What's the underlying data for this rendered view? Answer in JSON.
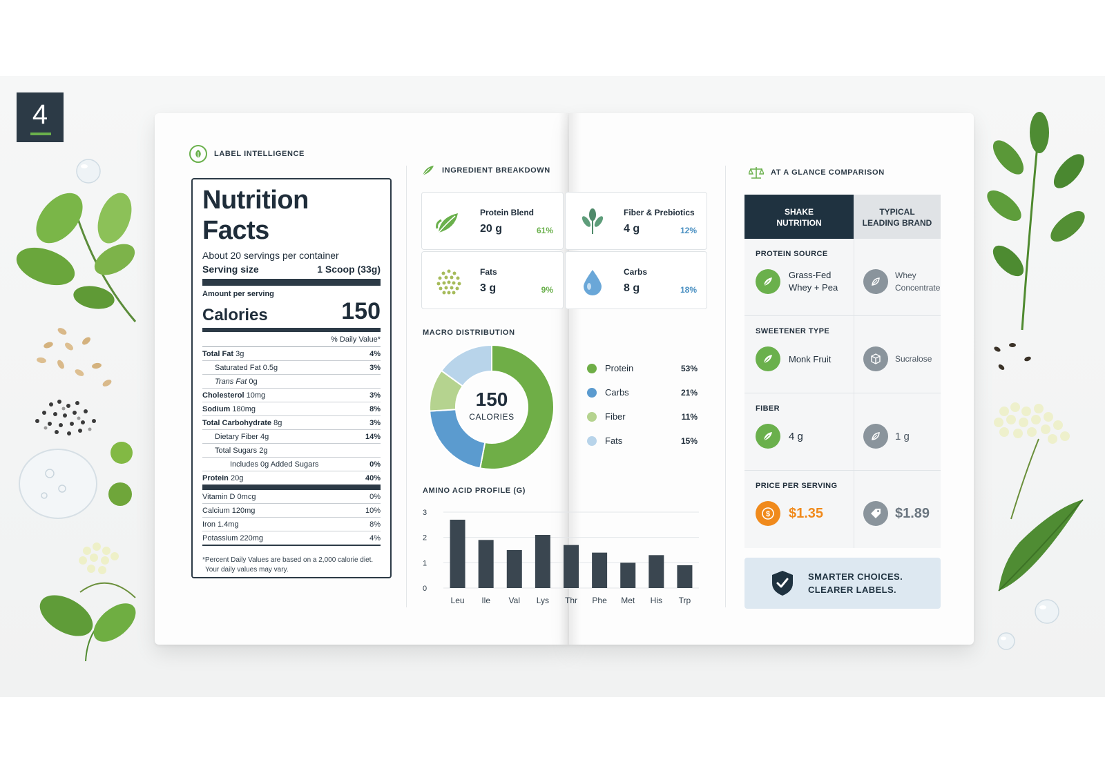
{
  "badge": "4",
  "label_intelligence": "LABEL INTELLIGENCE",
  "nutrition": {
    "title": "Nutrition Facts",
    "servings": "About 20 servings per container",
    "serving_size_label": "Serving size",
    "serving_size_value": "1 Scoop (33g)",
    "amount_per_serving": "Amount per serving",
    "calories_label": "Calories",
    "calories_value": "150",
    "daily_value_header": "% Daily Value*",
    "rows": [
      {
        "name": "Total Fat",
        "amount": "3g",
        "pct": "4%"
      },
      {
        "name": "Saturated Fat",
        "amount": "0.5g",
        "pct": "3%"
      },
      {
        "name": "Trans Fat",
        "amount": "0g",
        "pct": ""
      },
      {
        "name": "Cholesterol",
        "amount": "10mg",
        "pct": "3%"
      },
      {
        "name": "Sodium",
        "amount": "180mg",
        "pct": "8%"
      },
      {
        "name": "Total Carbohydrate",
        "amount": "8g",
        "pct": "3%"
      },
      {
        "name": "Dietary Fiber",
        "amount": "4g",
        "pct": "14%"
      },
      {
        "name": "Total Sugars",
        "amount": "2g",
        "pct": ""
      },
      {
        "name": "Includes 0g Added Sugars",
        "amount": "",
        "pct": "0%"
      },
      {
        "name": "Protein",
        "amount": "20g",
        "pct": "40%"
      }
    ],
    "vitamins": [
      {
        "name": "Vitamin D 0mcg",
        "pct": "0%"
      },
      {
        "name": "Calcium 120mg",
        "pct": "10%"
      },
      {
        "name": "Iron 1.4mg",
        "pct": "8%"
      },
      {
        "name": "Potassium 220mg",
        "pct": "4%"
      }
    ],
    "footnote_1": "*Percent Daily Values are based on a 2,000 calorie diet.",
    "footnote_2": "Your daily values may vary."
  },
  "ingredients": {
    "title": "INGREDIENT BREAKDOWN",
    "cards": [
      {
        "name": "Protein Blend",
        "amount": "20 g",
        "pct": "61%",
        "icon": "leaf-icon",
        "pct_color": "#6ab04c"
      },
      {
        "name": "Fiber & Prebiotics",
        "amount": "4 g",
        "pct": "12%",
        "icon": "sprout-icon",
        "pct_color": "#4a90c2"
      },
      {
        "name": "Fats",
        "amount": "3 g",
        "pct": "9%",
        "icon": "dots-icon",
        "pct_color": "#6ab04c"
      },
      {
        "name": "Carbs",
        "amount": "8 g",
        "pct": "18%",
        "icon": "droplet-icon",
        "pct_color": "#4a90c2"
      }
    ]
  },
  "macro": {
    "title": "MACRO DISTRIBUTION",
    "center_value": "150",
    "center_label": "CALORIES"
  },
  "amino": {
    "title": "AMINO ACID PROFILE (g)"
  },
  "chart_data": [
    {
      "type": "pie",
      "categories": [
        "Protein",
        "Carbs",
        "Fiber",
        "Fats"
      ],
      "values": [
        53,
        21,
        11,
        15
      ],
      "labels": [
        "53%",
        "21%",
        "11%",
        "15%"
      ],
      "colors": [
        "#6fae47",
        "#5b9bcf",
        "#b5d38f",
        "#b8d4ea"
      ]
    },
    {
      "type": "bar",
      "categories": [
        "Leu",
        "Ile",
        "Val",
        "Lys",
        "Thr",
        "Phe",
        "Met",
        "His",
        "Trp"
      ],
      "values": [
        2.7,
        1.9,
        1.5,
        2.1,
        1.7,
        1.4,
        1.0,
        1.3,
        0.9
      ],
      "ylim": [
        0,
        3
      ],
      "yticks": [
        "0",
        "1",
        "2",
        "3"
      ],
      "color": "#3a4650"
    }
  ],
  "comparison": {
    "title": "AT A GLANCE COMPARISON",
    "col1_line1": "SHAKE",
    "col1_line2": "NUTRITION",
    "col2_line1": "TYPICAL",
    "col2_line2": "LEADING BRAND",
    "sections": [
      {
        "title": "PROTEIN SOURCE",
        "ours_line1": "Grass-Fed",
        "ours_line2": "Whey + Pea",
        "theirs_line1": "Whey",
        "theirs_line2": "Concentrate"
      },
      {
        "title": "SWEETENER TYPE",
        "ours_line1": "Monk Fruit",
        "ours_line2": "",
        "theirs_line1": "Sucralose",
        "theirs_line2": ""
      },
      {
        "title": "FIBER",
        "ours_line1": "4 g",
        "ours_line2": "",
        "theirs_line1": "1 g",
        "theirs_line2": ""
      },
      {
        "title": "PRICE PER SERVING",
        "ours_line1": "$1.35",
        "ours_line2": "",
        "theirs_line1": "$1.89",
        "theirs_line2": ""
      }
    ],
    "tagline_1": "SMARTER CHOICES.",
    "tagline_2": "CLEARER LABELS."
  }
}
